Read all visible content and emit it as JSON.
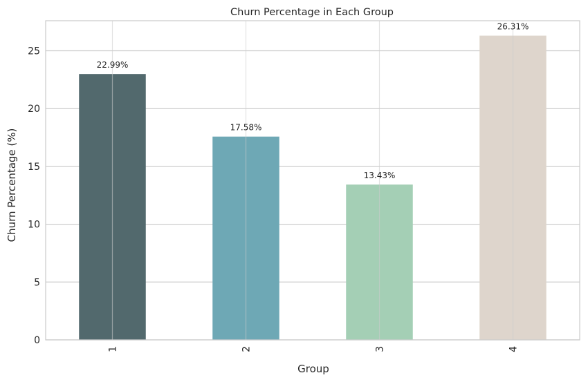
{
  "chart_data": {
    "type": "bar",
    "title": "Churn Percentage in Each Group",
    "xlabel": "Group",
    "ylabel": "Churn Percentage (%)",
    "categories": [
      "1",
      "2",
      "3",
      "4"
    ],
    "values": [
      22.99,
      17.58,
      13.43,
      26.31
    ],
    "data_labels": [
      "22.99%",
      "17.58%",
      "13.43%",
      "26.31%"
    ],
    "bar_colors": [
      "#52696d",
      "#6ea8b5",
      "#a4cfb5",
      "#ded5cc"
    ],
    "ylim": [
      0,
      27.6
    ],
    "yticks": [
      0,
      5,
      10,
      15,
      20,
      25
    ],
    "grid": true,
    "xtick_rotation": "vertical"
  }
}
